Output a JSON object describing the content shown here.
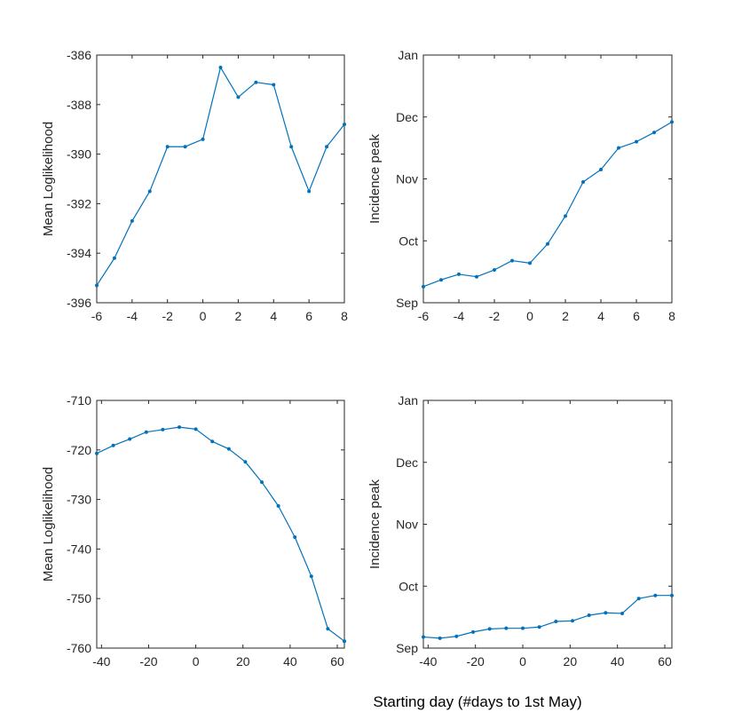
{
  "figure": {
    "xlabel": "Starting day (#days to 1st May)"
  },
  "colors": {
    "line": "#0072BD",
    "axis": "#262626"
  },
  "chart_data": [
    {
      "type": "line",
      "ylabel": "Mean Loglikelihood",
      "xlim": [
        -6,
        8
      ],
      "ylim": [
        -396,
        -386
      ],
      "xticks": [
        -6,
        -4,
        -2,
        0,
        2,
        4,
        6,
        8
      ],
      "xtick_labels": [
        "-6",
        "-4",
        "-2",
        "0",
        "2",
        "4",
        "6",
        "8"
      ],
      "yticks": [
        -396,
        -394,
        -392,
        -390,
        -388,
        -386
      ],
      "ytick_labels": [
        "-396",
        "-394",
        "-392",
        "-390",
        "-388",
        "-386"
      ],
      "grid": false,
      "series": [
        {
          "x": [
            -6,
            -5,
            -4,
            -3,
            -2,
            -1,
            0,
            1,
            2,
            3,
            4,
            5,
            6,
            7,
            8
          ],
          "y": [
            -395.3,
            -394.2,
            -392.7,
            -391.5,
            -389.7,
            -389.7,
            -389.4,
            -386.5,
            -387.7,
            -387.1,
            -387.2,
            -389.7,
            -391.5,
            -389.7,
            -388.8
          ]
        }
      ]
    },
    {
      "type": "line",
      "ylabel": "Incidence peak",
      "xlim": [
        -6,
        8
      ],
      "ylim": [
        0,
        4
      ],
      "xticks": [
        -6,
        -4,
        -2,
        0,
        2,
        4,
        6,
        8
      ],
      "xtick_labels": [
        "-6",
        "-4",
        "-2",
        "0",
        "2",
        "4",
        "6",
        "8"
      ],
      "yticks": [
        0,
        1,
        2,
        3,
        4
      ],
      "ytick_labels": [
        "Sep",
        "Oct",
        "Nov",
        "Dec",
        "Jan"
      ],
      "grid": false,
      "series": [
        {
          "x": [
            -6,
            -5,
            -4,
            -3,
            -2,
            -1,
            0,
            1,
            2,
            3,
            4,
            5,
            6,
            7,
            8
          ],
          "y": [
            0.26,
            0.37,
            0.46,
            0.42,
            0.53,
            0.68,
            0.64,
            0.95,
            1.4,
            1.95,
            2.15,
            2.5,
            2.6,
            2.75,
            2.92
          ]
        }
      ]
    },
    {
      "type": "line",
      "ylabel": "Mean Loglikelihood",
      "xlim": [
        -42,
        63
      ],
      "ylim": [
        -760,
        -710
      ],
      "xticks": [
        -40,
        -20,
        0,
        20,
        40,
        60
      ],
      "xtick_labels": [
        "-40",
        "-20",
        "0",
        "20",
        "40",
        "60"
      ],
      "yticks": [
        -760,
        -750,
        -740,
        -730,
        -720,
        -710
      ],
      "ytick_labels": [
        "-760",
        "-750",
        "-740",
        "-730",
        "-720",
        "-710"
      ],
      "grid": false,
      "series": [
        {
          "x": [
            -42,
            -35,
            -28,
            -21,
            -14,
            -7,
            0,
            7,
            14,
            21,
            28,
            35,
            42,
            49,
            56,
            63
          ],
          "y": [
            -720.7,
            -719.1,
            -717.8,
            -716.4,
            -715.9,
            -715.4,
            -715.8,
            -718.3,
            -719.8,
            -722.4,
            -726.5,
            -731.3,
            -737.6,
            -745.5,
            -756.1,
            -758.6
          ]
        }
      ]
    },
    {
      "type": "line",
      "ylabel": "Incidence peak",
      "xlim": [
        -42,
        63
      ],
      "ylim": [
        0,
        4
      ],
      "xticks": [
        -40,
        -20,
        0,
        20,
        40,
        60
      ],
      "xtick_labels": [
        "-40",
        "-20",
        "0",
        "20",
        "40",
        "60"
      ],
      "yticks": [
        0,
        1,
        2,
        3,
        4
      ],
      "ytick_labels": [
        "Sep",
        "Oct",
        "Nov",
        "Dec",
        "Jan"
      ],
      "grid": false,
      "series": [
        {
          "x": [
            -42,
            -35,
            -28,
            -21,
            -14,
            -7,
            0,
            7,
            14,
            21,
            28,
            35,
            42,
            49,
            56,
            63
          ],
          "y": [
            0.18,
            0.16,
            0.19,
            0.26,
            0.31,
            0.32,
            0.32,
            0.34,
            0.43,
            0.44,
            0.53,
            0.57,
            0.56,
            0.8,
            0.85,
            0.85
          ]
        }
      ]
    }
  ]
}
